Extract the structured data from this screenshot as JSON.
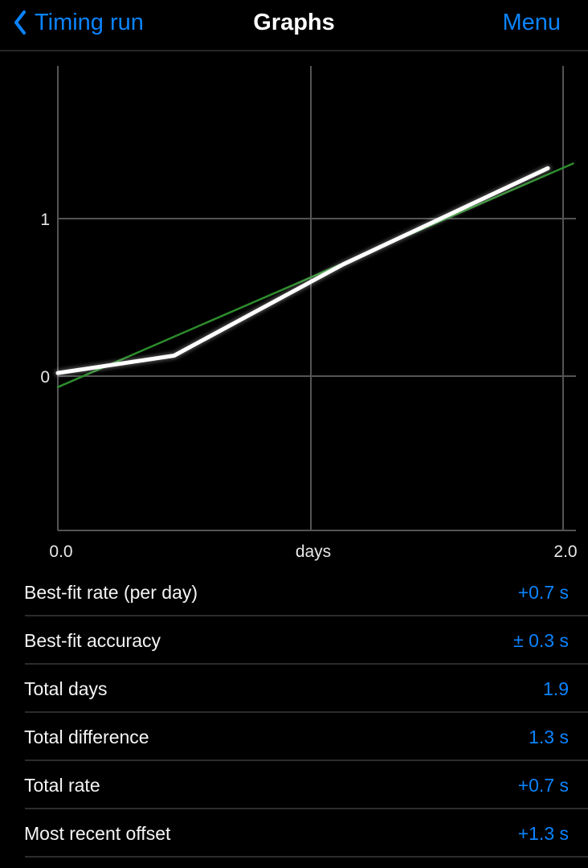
{
  "nav": {
    "back_label": "Timing run",
    "title": "Graphs",
    "menu_label": "Menu"
  },
  "chart_data": {
    "type": "line",
    "title": "",
    "xlabel": "days",
    "x_tick_labels": [
      "0.0",
      "2.0"
    ],
    "y_tick_labels": [
      "0",
      "1"
    ],
    "x_ticks": [
      0,
      2
    ],
    "y_ticks": [
      0,
      1
    ],
    "xlim": [
      0,
      2.05
    ],
    "ylim": [
      -0.98,
      1.97
    ],
    "grid": true,
    "legend": "none",
    "series": [
      {
        "name": "best-fit-line",
        "color": "#2d8c2d",
        "width": 2.5,
        "points": [
          [
            0,
            -0.07
          ],
          [
            2.04,
            1.35
          ]
        ]
      },
      {
        "name": "measured-offset",
        "color": "#ffffff",
        "width": 5,
        "points": [
          [
            0,
            0.02
          ],
          [
            0.46,
            0.13
          ],
          [
            1.13,
            0.71
          ],
          [
            1.94,
            1.32
          ]
        ]
      }
    ]
  },
  "stats": {
    "rows": [
      {
        "label": "Best-fit rate (per day)",
        "value": "+0.7 s"
      },
      {
        "label": "Best-fit accuracy",
        "value": "± 0.3 s"
      },
      {
        "label": "Total days",
        "value": "1.9"
      },
      {
        "label": "Total difference",
        "value": "1.3 s"
      },
      {
        "label": "Total rate",
        "value": "+0.7 s"
      },
      {
        "label": "Most recent offset",
        "value": "+1.3 s"
      }
    ]
  },
  "colors": {
    "accent": "#0a84ff",
    "grid": "#545456",
    "fit_green": "#2d8c2d",
    "data_white": "#ffffff",
    "separator": "#2c2c2e"
  }
}
